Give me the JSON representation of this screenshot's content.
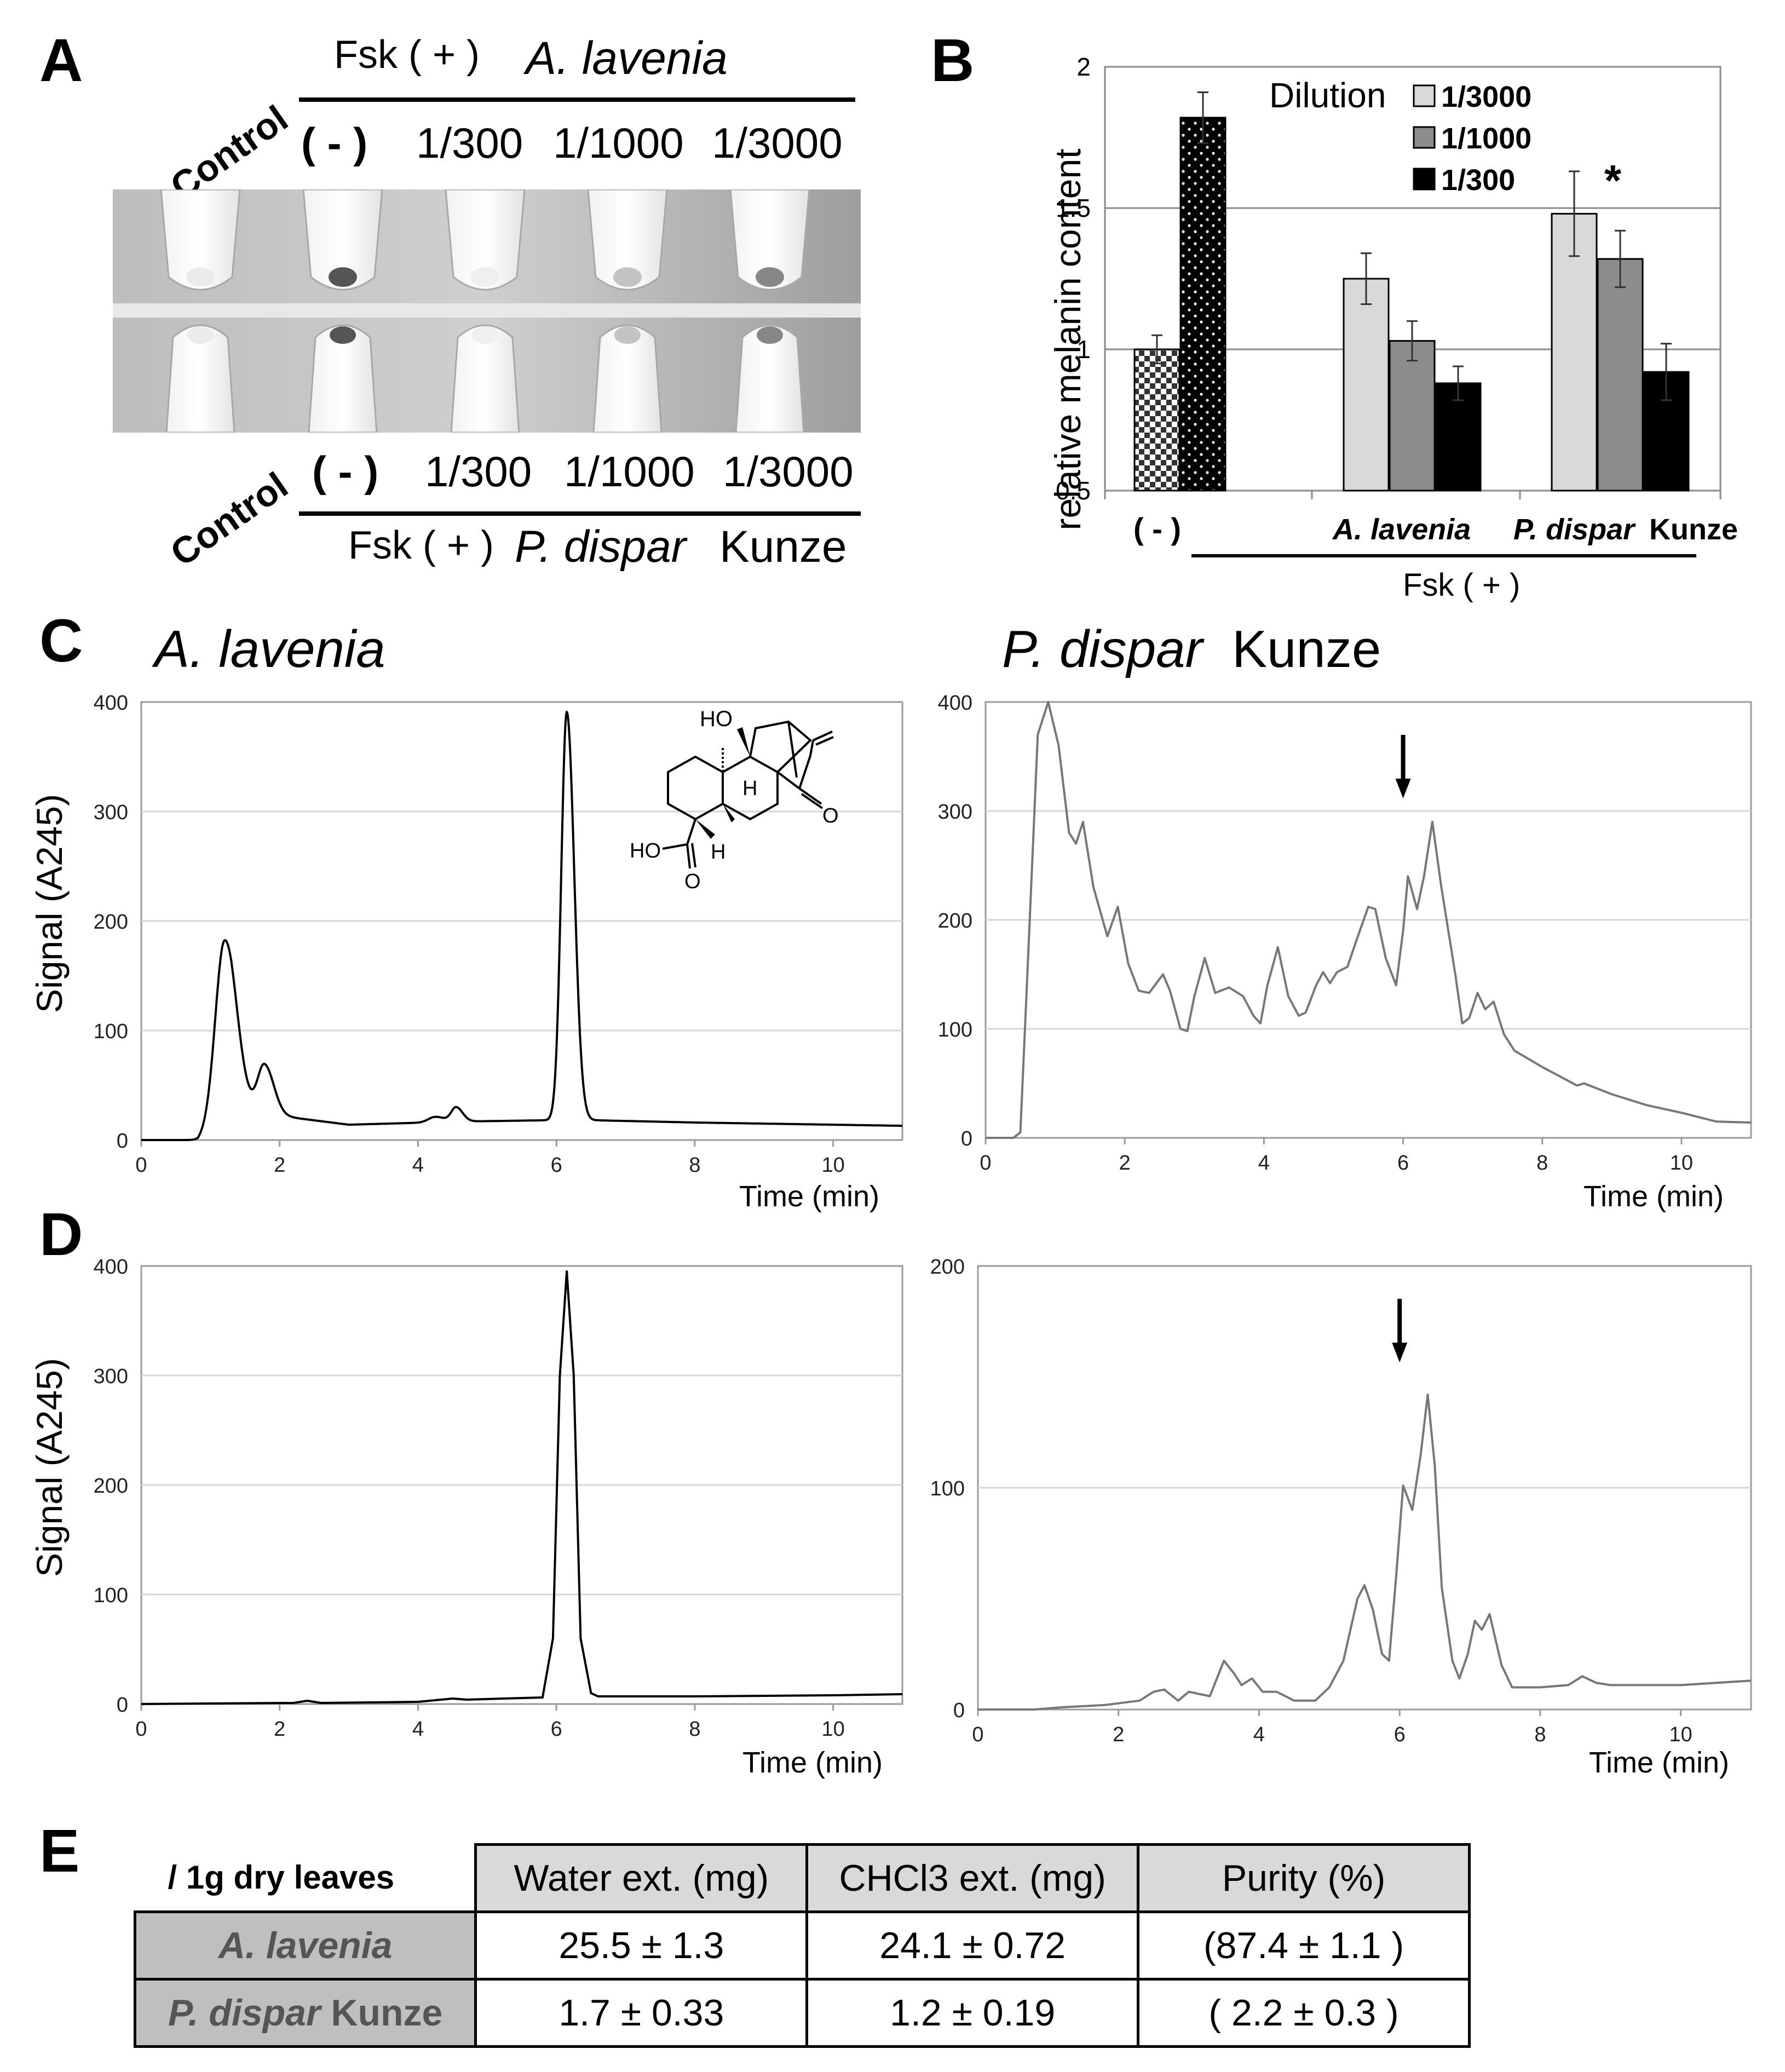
{
  "panel_labels": {
    "a": "A",
    "b": "B",
    "c": "C",
    "d": "D",
    "e": "E"
  },
  "panel_a": {
    "top": {
      "control": "Control",
      "fsk": "Fsk ( + )",
      "species": "A. lavenia",
      "lanes": [
        "( - )",
        "1/300",
        "1/1000",
        "1/3000"
      ]
    },
    "bottom": {
      "control": "Control",
      "fsk": "Fsk ( + )",
      "species_italic": "P. dispar",
      "species_rest": "Kunze",
      "lanes": [
        "( - )",
        "1/300",
        "1/1000",
        "1/3000"
      ]
    },
    "pellet_darkness": [
      0.1,
      0.85,
      0.08,
      0.3,
      0.6
    ]
  },
  "chart_data": [
    {
      "id": "B",
      "type": "bar",
      "ylabel": "relative melanin content",
      "ylim": [
        0.5,
        2
      ],
      "yticks": [
        "0.5",
        "1",
        "1.5",
        "2"
      ],
      "grid": true,
      "legend_title": "Dilution",
      "legend": [
        {
          "label": "1/3000",
          "color": "#d9d9d9"
        },
        {
          "label": "1/1000",
          "color": "#8c8c8c"
        },
        {
          "label": "1/300",
          "color": "#000000"
        }
      ],
      "bars": [
        {
          "group": "( - )",
          "series": "control",
          "value": 1.0,
          "error": 0.05,
          "pattern": "checker"
        },
        {
          "group": "( - )",
          "series": "Fsk",
          "value": 1.82,
          "error": 0.09,
          "pattern": "dots"
        },
        {
          "group": "A. lavenia",
          "series": "1/3000",
          "value": 1.25,
          "error": 0.09,
          "pattern": "light"
        },
        {
          "group": "A. lavenia",
          "series": "1/1000",
          "value": 1.03,
          "error": 0.07,
          "pattern": "mid"
        },
        {
          "group": "A. lavenia",
          "series": "1/300",
          "value": 0.88,
          "error": 0.06,
          "pattern": "dark"
        },
        {
          "group": "P. dispar Kunze",
          "series": "1/3000",
          "value": 1.48,
          "error": 0.15,
          "pattern": "light"
        },
        {
          "group": "P. dispar Kunze",
          "series": "1/1000",
          "value": 1.32,
          "error": 0.1,
          "pattern": "mid"
        },
        {
          "group": "P. dispar Kunze",
          "series": "1/300",
          "value": 0.92,
          "error": 0.1,
          "pattern": "dark"
        }
      ],
      "annotation": "*",
      "xlabels": {
        "neg": "( - )",
        "alav": "A. lavenia",
        "pdis_italic": "P. dispar",
        "pdis_rest": "Kunze",
        "fsk": "Fsk ( + )"
      }
    },
    {
      "id": "C-left",
      "type": "line",
      "title": "A. lavenia",
      "xlabel": "Time (min)",
      "ylabel": "Signal (A245)",
      "xlim": [
        0,
        11
      ],
      "ylim": [
        0,
        400
      ],
      "xticks": [
        0,
        2,
        4,
        6,
        8,
        10
      ],
      "yticks": [
        0,
        100,
        200,
        300,
        400
      ],
      "color": "#000000",
      "peaks": [
        [
          1.2,
          160,
          0.13
        ],
        [
          1.78,
          45,
          0.1
        ],
        [
          4.25,
          5,
          0.1
        ],
        [
          4.55,
          13,
          0.07
        ],
        [
          6.15,
          373,
          0.08
        ]
      ],
      "baseline": {
        "start": 0.82,
        "segments": [
          [
            0.82,
            0
          ],
          [
            1.3,
            28
          ],
          [
            2.0,
            22
          ],
          [
            3.0,
            14
          ],
          [
            4.7,
            17
          ],
          [
            5.8,
            18
          ],
          [
            6.6,
            18
          ],
          [
            8,
            16
          ],
          [
            11,
            13
          ]
        ]
      },
      "structure_labels": {
        "ho": "HO",
        "h1": "H",
        "h2": "H",
        "ho2": "HO",
        "o1": "O",
        "o2": "O"
      }
    },
    {
      "id": "C-right",
      "type": "line",
      "title_italic": "P. dispar",
      "title_rest": "Kunze",
      "xlabel": "Time (min)",
      "xlim": [
        0,
        11
      ],
      "ylim": [
        0,
        400
      ],
      "xticks": [
        0,
        2,
        4,
        6,
        8,
        10
      ],
      "yticks": [
        0,
        100,
        200,
        300,
        400
      ],
      "color": "#777777",
      "arrow_at": 6.0,
      "points": [
        [
          0,
          0
        ],
        [
          0.4,
          0
        ],
        [
          0.5,
          5
        ],
        [
          0.6,
          150
        ],
        [
          0.75,
          370
        ],
        [
          0.9,
          400
        ],
        [
          1.05,
          360
        ],
        [
          1.2,
          280
        ],
        [
          1.3,
          270
        ],
        [
          1.4,
          290
        ],
        [
          1.55,
          230
        ],
        [
          1.75,
          185
        ],
        [
          1.9,
          212
        ],
        [
          2.05,
          160
        ],
        [
          2.2,
          135
        ],
        [
          2.35,
          133
        ],
        [
          2.55,
          150
        ],
        [
          2.65,
          135
        ],
        [
          2.8,
          100
        ],
        [
          2.9,
          98
        ],
        [
          3.0,
          130
        ],
        [
          3.15,
          165
        ],
        [
          3.3,
          133
        ],
        [
          3.5,
          138
        ],
        [
          3.7,
          130
        ],
        [
          3.85,
          112
        ],
        [
          3.95,
          105
        ],
        [
          4.05,
          140
        ],
        [
          4.2,
          175
        ],
        [
          4.35,
          130
        ],
        [
          4.5,
          112
        ],
        [
          4.6,
          115
        ],
        [
          4.75,
          140
        ],
        [
          4.85,
          152
        ],
        [
          4.95,
          142
        ],
        [
          5.05,
          152
        ],
        [
          5.2,
          157
        ],
        [
          5.35,
          185
        ],
        [
          5.5,
          212
        ],
        [
          5.6,
          210
        ],
        [
          5.75,
          165
        ],
        [
          5.9,
          140
        ],
        [
          6.0,
          190
        ],
        [
          6.07,
          240
        ],
        [
          6.2,
          210
        ],
        [
          6.3,
          240
        ],
        [
          6.42,
          290
        ],
        [
          6.55,
          230
        ],
        [
          6.75,
          150
        ],
        [
          6.85,
          105
        ],
        [
          6.95,
          110
        ],
        [
          7.07,
          133
        ],
        [
          7.18,
          118
        ],
        [
          7.3,
          125
        ],
        [
          7.45,
          95
        ],
        [
          7.6,
          80
        ],
        [
          8.0,
          65
        ],
        [
          8.5,
          48
        ],
        [
          8.6,
          50
        ],
        [
          9.0,
          40
        ],
        [
          9.5,
          30
        ],
        [
          10.0,
          23
        ],
        [
          10.5,
          15
        ],
        [
          11,
          14
        ]
      ]
    },
    {
      "id": "D-left",
      "type": "line",
      "xlabel": "Time (min)",
      "ylabel": "Signal (A245)",
      "xlim": [
        0,
        11
      ],
      "ylim": [
        0,
        400
      ],
      "xticks": [
        0,
        2,
        4,
        6,
        8,
        10
      ],
      "yticks": [
        0,
        100,
        200,
        300,
        400
      ],
      "color": "#000000",
      "points": [
        [
          0,
          0
        ],
        [
          1,
          0.5
        ],
        [
          2.2,
          1
        ],
        [
          2.4,
          3
        ],
        [
          2.6,
          1
        ],
        [
          4.0,
          2
        ],
        [
          4.5,
          5
        ],
        [
          4.7,
          4
        ],
        [
          5.8,
          6
        ],
        [
          5.95,
          60
        ],
        [
          6.05,
          300
        ],
        [
          6.15,
          395
        ],
        [
          6.25,
          300
        ],
        [
          6.35,
          60
        ],
        [
          6.5,
          10
        ],
        [
          6.6,
          7
        ],
        [
          8,
          7
        ],
        [
          10,
          8
        ],
        [
          11,
          9
        ]
      ]
    },
    {
      "id": "D-right",
      "type": "line",
      "xlabel": "Time (min)",
      "xlim": [
        0,
        11
      ],
      "ylim": [
        0,
        200
      ],
      "xticks": [
        0,
        2,
        4,
        6,
        8,
        10
      ],
      "yticks": [
        0,
        100,
        200
      ],
      "color": "#777777",
      "arrow_at": 6.0,
      "points": [
        [
          0,
          0
        ],
        [
          0.8,
          0
        ],
        [
          1.2,
          1
        ],
        [
          1.8,
          2
        ],
        [
          2.3,
          4
        ],
        [
          2.5,
          8
        ],
        [
          2.65,
          9
        ],
        [
          2.85,
          4
        ],
        [
          3.0,
          8
        ],
        [
          3.15,
          7
        ],
        [
          3.3,
          6
        ],
        [
          3.5,
          22
        ],
        [
          3.65,
          16
        ],
        [
          3.75,
          11
        ],
        [
          3.9,
          14
        ],
        [
          4.05,
          8
        ],
        [
          4.25,
          8
        ],
        [
          4.5,
          4
        ],
        [
          4.8,
          4
        ],
        [
          5.0,
          10
        ],
        [
          5.2,
          22
        ],
        [
          5.4,
          50
        ],
        [
          5.5,
          56
        ],
        [
          5.62,
          45
        ],
        [
          5.75,
          25
        ],
        [
          5.85,
          22
        ],
        [
          5.95,
          60
        ],
        [
          6.05,
          101
        ],
        [
          6.18,
          90
        ],
        [
          6.3,
          115
        ],
        [
          6.4,
          142
        ],
        [
          6.5,
          110
        ],
        [
          6.6,
          55
        ],
        [
          6.75,
          22
        ],
        [
          6.85,
          14
        ],
        [
          6.97,
          25
        ],
        [
          7.07,
          40
        ],
        [
          7.17,
          36
        ],
        [
          7.28,
          43
        ],
        [
          7.45,
          20
        ],
        [
          7.6,
          10
        ],
        [
          8.0,
          10
        ],
        [
          8.4,
          11
        ],
        [
          8.6,
          15
        ],
        [
          8.8,
          12
        ],
        [
          9.0,
          11
        ],
        [
          10,
          11
        ],
        [
          11,
          13
        ]
      ]
    }
  ],
  "table": {
    "corner": "/ 1g dry leaves",
    "headers": [
      "Water ext. (mg)",
      "CHCl3 ext. (mg)",
      "Purity (%)"
    ],
    "rows": [
      {
        "name": "A. lavenia",
        "name_rest": "",
        "cells": [
          "25.5  ±  1.3",
          "24.1  ±  0.72",
          "(87.4  ±  1.1 )"
        ]
      },
      {
        "name": "P. dispar",
        "name_rest": "Kunze",
        "cells": [
          "1.7  ±  0.33",
          "1.2  ±  0.19",
          "( 2.2  ±  0.3 )"
        ]
      }
    ]
  }
}
